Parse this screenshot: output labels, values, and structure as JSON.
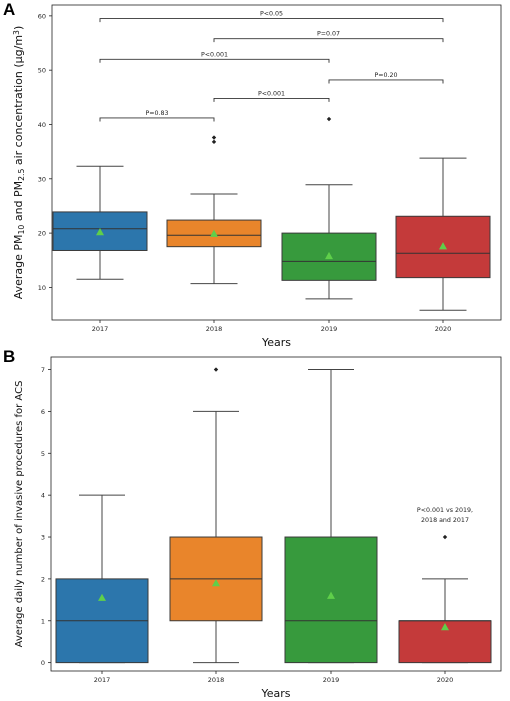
{
  "colors": {
    "y2017": "#2c76ac",
    "y2018": "#e9852b",
    "y2019": "#379a3d",
    "y2020": "#c43a3a",
    "mean_marker": "#5fcf4a",
    "median": "#333333",
    "whisker": "#444444"
  },
  "chart_data": [
    {
      "panel_label": "A",
      "type": "box",
      "xlabel": "Years",
      "ylabel": "Average PM10 and PM2.5 air concentration (μg/m3)",
      "ylabel_parts": {
        "a": "Average PM",
        "sub1": "10",
        "b": " and PM",
        "sub2": "2.5",
        "c": " air concentration (μg/m",
        "sup": "3",
        "d": ")"
      },
      "ylim": [
        4,
        62
      ],
      "yticks": [
        10,
        20,
        30,
        40,
        50,
        60
      ],
      "categories": [
        "2017",
        "2018",
        "2019",
        "2020"
      ],
      "boxes": [
        {
          "category": "2017",
          "whisker_low": 11.5,
          "q1": 16.8,
          "median": 20.8,
          "q3": 23.9,
          "whisker_high": 32.3,
          "mean": 20.2,
          "outliers": []
        },
        {
          "category": "2018",
          "whisker_low": 10.7,
          "q1": 17.5,
          "median": 19.6,
          "q3": 22.4,
          "whisker_high": 27.2,
          "mean": 19.9,
          "outliers": [
            36.8,
            37.6
          ]
        },
        {
          "category": "2019",
          "whisker_low": 7.9,
          "q1": 11.3,
          "median": 14.8,
          "q3": 20.0,
          "whisker_high": 28.9,
          "mean": 15.8,
          "outliers": [
            41.0
          ]
        },
        {
          "category": "2020",
          "whisker_low": 5.8,
          "q1": 11.8,
          "median": 16.3,
          "q3": 23.1,
          "whisker_high": 33.8,
          "mean": 17.6,
          "outliers": []
        }
      ],
      "annotations": [
        {
          "text": "P=0.83",
          "from": "2017",
          "to": "2018",
          "y": 41.2
        },
        {
          "text": "P<0.001",
          "from": "2018",
          "to": "2019",
          "y": 44.8
        },
        {
          "text": "P=0.20",
          "from": "2019",
          "to": "2020",
          "y": 48.2
        },
        {
          "text": "P<0.001",
          "from": "2017",
          "to": "2019",
          "y": 52.0
        },
        {
          "text": "P=0.07",
          "from": "2018",
          "to": "2020",
          "y": 55.8
        },
        {
          "text": "P<0.05",
          "from": "2017",
          "to": "2020",
          "y": 59.5
        }
      ]
    },
    {
      "panel_label": "B",
      "type": "box",
      "xlabel": "Years",
      "ylabel": "Average daily number of invasive procedures for ACS",
      "ylim": [
        -0.2,
        7.3
      ],
      "yticks": [
        0,
        1,
        2,
        3,
        4,
        5,
        6,
        7
      ],
      "categories": [
        "2017",
        "2018",
        "2019",
        "2020"
      ],
      "boxes": [
        {
          "category": "2017",
          "whisker_low": 0,
          "q1": 0,
          "median": 1,
          "q3": 2,
          "whisker_high": 4,
          "mean": 1.55,
          "outliers": []
        },
        {
          "category": "2018",
          "whisker_low": 0,
          "q1": 1,
          "median": 2,
          "q3": 3,
          "whisker_high": 6,
          "mean": 1.9,
          "outliers": [
            7
          ]
        },
        {
          "category": "2019",
          "whisker_low": 0,
          "q1": 0,
          "median": 1,
          "q3": 3,
          "whisker_high": 7,
          "mean": 1.6,
          "outliers": []
        },
        {
          "category": "2020",
          "whisker_low": 0,
          "q1": 0,
          "median": 1,
          "q3": 1,
          "whisker_high": 2,
          "mean": 0.85,
          "outliers": [
            3
          ]
        }
      ],
      "note_lines": [
        "P<0.001 vs 2019,",
        "2018 and 2017"
      ]
    }
  ]
}
